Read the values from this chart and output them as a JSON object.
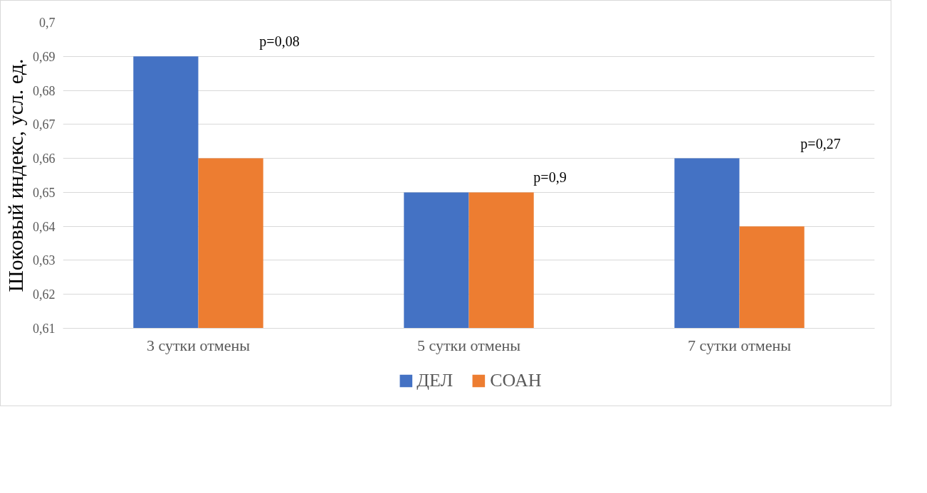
{
  "chart_data": {
    "type": "bar",
    "ylabel": "Шоковый индекс, усл. ед.",
    "categories": [
      "3 сутки отмены",
      "5 сутки отмены",
      "7 сутки отмены"
    ],
    "series": [
      {
        "name": "ДЕЛ",
        "color": "#4472c4",
        "values": [
          0.69,
          0.65,
          0.66
        ]
      },
      {
        "name": "СОАН",
        "color": "#ed7d31",
        "values": [
          0.66,
          0.65,
          0.64
        ]
      }
    ],
    "ylim": [
      0.61,
      0.7
    ],
    "yticks": [
      {
        "value": 0.61,
        "label": "0,61"
      },
      {
        "value": 0.62,
        "label": "0,62"
      },
      {
        "value": 0.63,
        "label": "0,63"
      },
      {
        "value": 0.64,
        "label": "0,64"
      },
      {
        "value": 0.65,
        "label": "0,65"
      },
      {
        "value": 0.66,
        "label": "0,66"
      },
      {
        "value": 0.67,
        "label": "0,67"
      },
      {
        "value": 0.68,
        "label": "0,68"
      },
      {
        "value": 0.69,
        "label": "0,69"
      },
      {
        "value": 0.7,
        "label": "0,7"
      }
    ],
    "annotations": [
      "p=0,08",
      "p=0,9",
      "p=0,27"
    ],
    "grid": "y",
    "legend": "bottom"
  }
}
